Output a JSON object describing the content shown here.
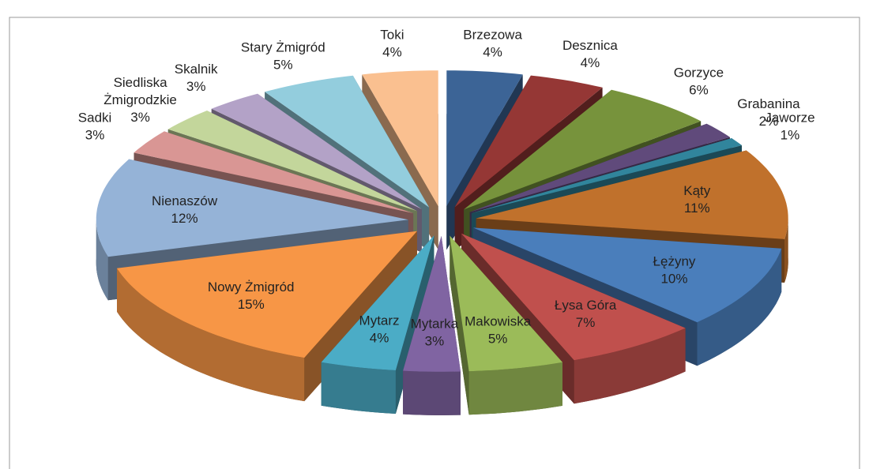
{
  "chart_data": {
    "type": "pie3d",
    "categories": [
      "Brzezowa",
      "Desznica",
      "Gorzyce",
      "Grabanina",
      "Jaworze",
      "Kąty",
      "Łężyny",
      "Łysa Góra",
      "Makowiska",
      "Mytarka",
      "Mytarz",
      "Nowy Żmigród",
      "Nienaszów",
      "Sadki",
      "Siedliska Żmigrodzkie",
      "Skalnik",
      "Stary Żmigród",
      "Toki"
    ],
    "values": [
      4,
      4,
      6,
      2,
      1,
      11,
      10,
      7,
      5,
      3,
      4,
      15,
      12,
      3,
      3,
      3,
      5,
      4
    ],
    "value_labels": [
      "4%",
      "4%",
      "6%",
      "2%",
      "1%",
      "11%",
      "10%",
      "7%",
      "5%",
      "3%",
      "4%",
      "15%",
      "12%",
      "3%",
      "3%",
      "3%",
      "5%",
      "4%"
    ],
    "colors": [
      "#3c6496",
      "#953735",
      "#77933c",
      "#604a7b",
      "#31859c",
      "#c0712c",
      "#4a7ebb",
      "#c0504d",
      "#9bbb59",
      "#8064a2",
      "#4bacc6",
      "#f79646",
      "#95b3d7",
      "#d99694",
      "#c3d69b",
      "#b3a2c7",
      "#93cddd",
      "#fac090"
    ]
  }
}
